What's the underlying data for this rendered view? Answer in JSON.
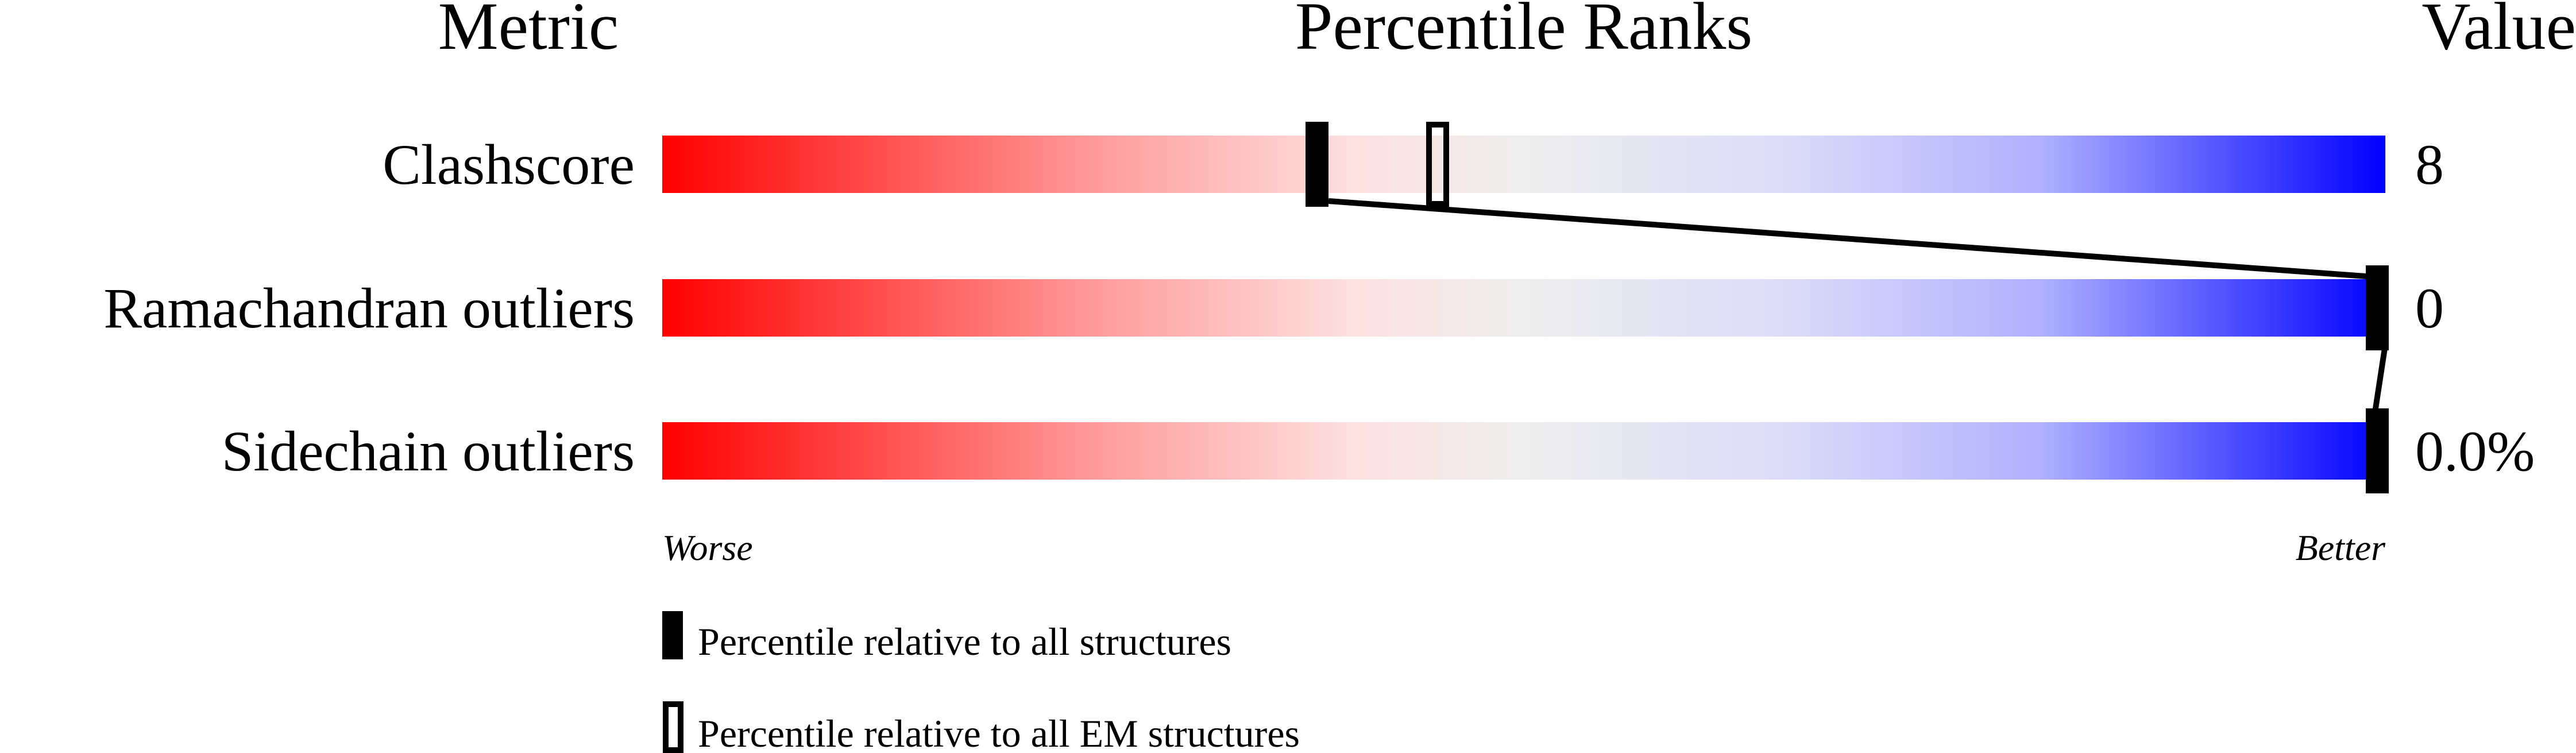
{
  "chart_data": {
    "type": "percentile-bars",
    "headers": {
      "metric": "Metric",
      "ranks": "Percentile Ranks",
      "value": "Value"
    },
    "metrics": [
      {
        "label": "Clashscore",
        "value": "8",
        "percentile_all": 38,
        "percentile_em": 45
      },
      {
        "label": "Ramachandran outliers",
        "value": "0",
        "percentile_all": 100
      },
      {
        "label": "Sidechain outliers",
        "value": "0.0%",
        "percentile_all": 100
      }
    ],
    "xrange": [
      0,
      100
    ],
    "axis_labels": {
      "worse": "Worse",
      "better": "Better"
    },
    "legend": [
      {
        "marker": "filled",
        "label": "Percentile relative to all structures"
      },
      {
        "marker": "hollow",
        "label": "Percentile relative to all EM structures"
      }
    ],
    "colors": {
      "worse": "#ff0000",
      "middle": "#eeeeee",
      "better": "#0000ff",
      "marker": "#000000"
    }
  }
}
